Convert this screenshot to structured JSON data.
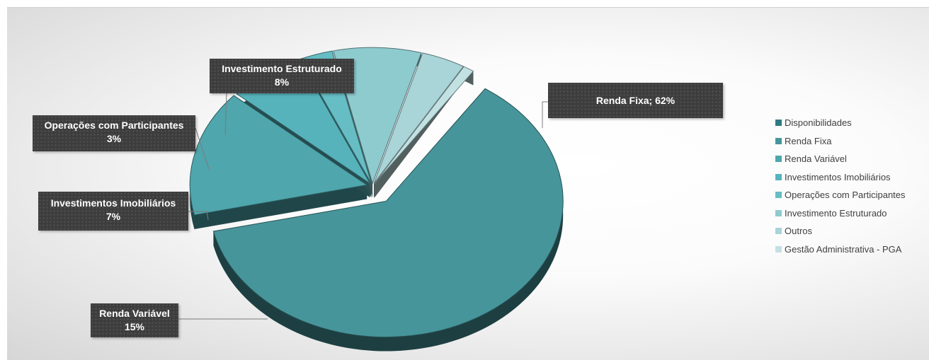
{
  "chart_data": {
    "type": "pie",
    "title": "",
    "slices": [
      {
        "name": "Renda Fixa",
        "value": 62,
        "color": "#46959b"
      },
      {
        "name": "Renda Variável",
        "value": 15,
        "color": "#4fa6ad"
      },
      {
        "name": "Investimentos Imobiliários",
        "value": 7,
        "color": "#57b3bb"
      },
      {
        "name": "Operações com Participantes",
        "value": 3,
        "color": "#66bdc4"
      },
      {
        "name": "Investimento Estruturado",
        "value": 8,
        "color": "#8ecbcf"
      },
      {
        "name": "Outros",
        "value": 4,
        "color": "#a9d4d8"
      },
      {
        "name": "Gestão Administrativa - PGA",
        "value": 1,
        "color": "#c2e1e3"
      }
    ],
    "callouts": [
      {
        "line1": "Renda Fixa; 62%",
        "line2": ""
      },
      {
        "line1": "Renda Variável",
        "line2": "15%"
      },
      {
        "line1": "Investimentos Imobiliários",
        "line2": "7%"
      },
      {
        "line1": "Operações com Participantes",
        "line2": "3%"
      },
      {
        "line1": "Investimento Estruturado",
        "line2": "8%"
      }
    ],
    "legend": {
      "position": "right",
      "items": [
        {
          "label": "Disponibilidades",
          "color": "#2e7b80"
        },
        {
          "label": "Renda Fixa",
          "color": "#46959b"
        },
        {
          "label": "Renda Variável",
          "color": "#4fa6ad"
        },
        {
          "label": "Investimentos Imobiliários",
          "color": "#57b3bb"
        },
        {
          "label": "Operações com Participantes",
          "color": "#66bdc4"
        },
        {
          "label": "Investimento Estruturado",
          "color": "#8ecbcf"
        },
        {
          "label": "Outros",
          "color": "#a9d4d8"
        },
        {
          "label": "Gestão Administrativa - PGA",
          "color": "#c2e1e3"
        }
      ]
    }
  }
}
